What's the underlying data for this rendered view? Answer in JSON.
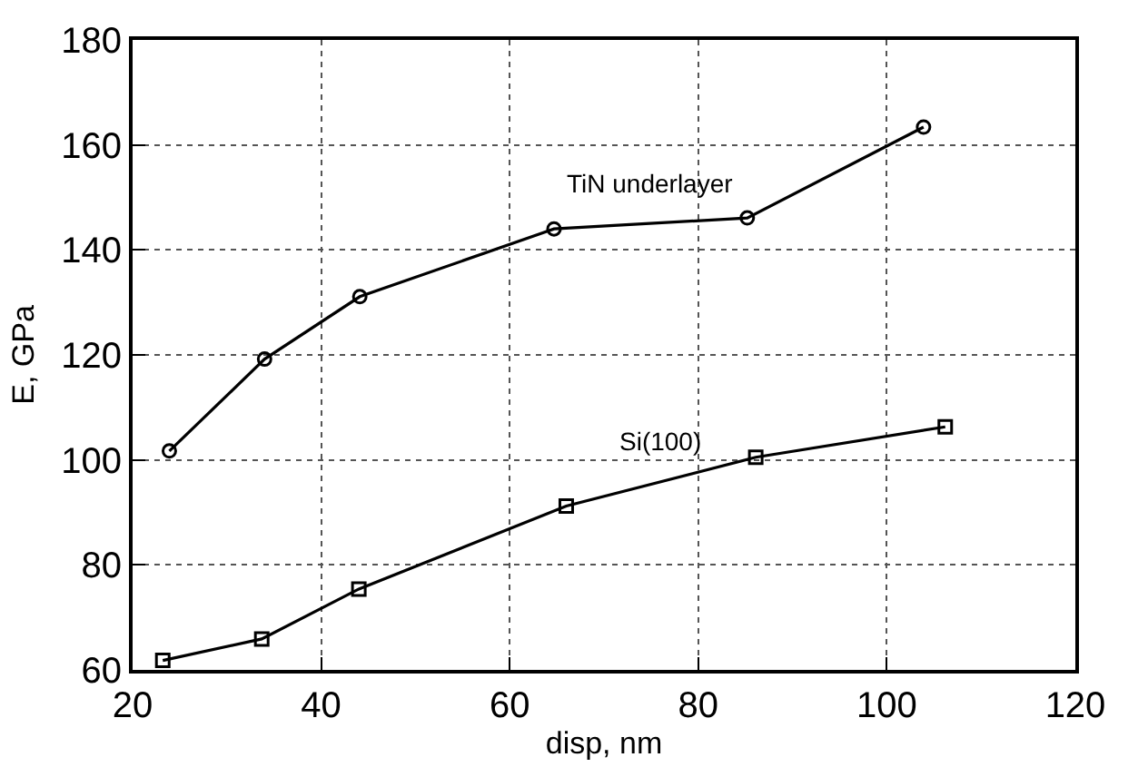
{
  "chart_data": {
    "type": "line",
    "xlabel": "disp, nm",
    "ylabel": "E, GPa",
    "xlim": [
      20,
      120
    ],
    "xticks": [
      20,
      40,
      60,
      80,
      100,
      120
    ],
    "ylim": [
      60,
      180
    ],
    "yticks": [
      60,
      80,
      100,
      120,
      140,
      160,
      180
    ],
    "grid": true,
    "legend": false,
    "line_style": "solid",
    "series": [
      {
        "name": "TiN underlayer",
        "color": "#000000",
        "marker": "circle",
        "x": [
          23.9,
          34.0,
          44.1,
          64.7,
          85.2,
          103.9
        ],
        "values": [
          101.7,
          119.2,
          131.1,
          144.0,
          146.1,
          163.4
        ]
      },
      {
        "name": "Si(100)",
        "color": "#000000",
        "marker": "square",
        "x": [
          23.2,
          33.7,
          44.0,
          66.0,
          86.1,
          106.2
        ],
        "values": [
          61.8,
          65.9,
          75.4,
          91.2,
          100.5,
          106.3
        ]
      }
    ]
  }
}
